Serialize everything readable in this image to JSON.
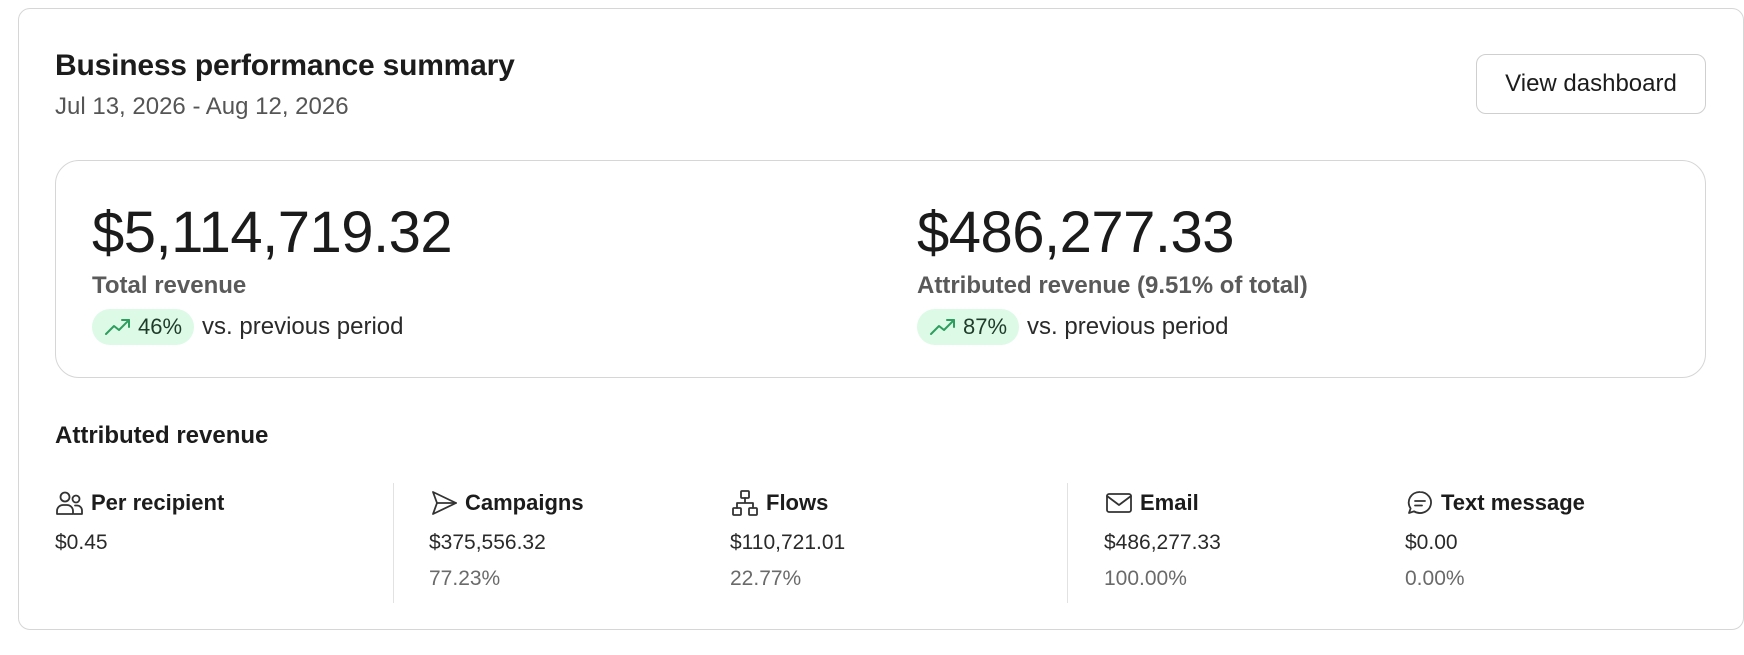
{
  "header": {
    "title": "Business performance summary",
    "date_range": "Jul 13, 2026 - Aug 12, 2026",
    "view_dashboard_label": "View dashboard"
  },
  "kpis": {
    "total": {
      "value": "$5,114,719.32",
      "label": "Total revenue",
      "change": "46%",
      "comparison": "vs. previous period",
      "trend_icon": "trending-up-icon"
    },
    "attributed": {
      "value": "$486,277.33",
      "label": "Attributed revenue (9.51% of total)",
      "change": "87%",
      "comparison": "vs. previous period",
      "trend_icon": "trending-up-icon"
    }
  },
  "attributed_section": {
    "title": "Attributed revenue",
    "metrics": [
      {
        "label": "Per recipient",
        "icon": "people-icon",
        "value": "$0.45",
        "pct": ""
      },
      {
        "label": "Campaigns",
        "icon": "send-icon",
        "value": "$375,556.32",
        "pct": "77.23%"
      },
      {
        "label": "Flows",
        "icon": "flow-icon",
        "value": "$110,721.01",
        "pct": "22.77%"
      },
      {
        "label": "Email",
        "icon": "envelope-icon",
        "value": "$486,277.33",
        "pct": "100.00%"
      },
      {
        "label": "Text message",
        "icon": "chat-icon",
        "value": "$0.00",
        "pct": "0.00%"
      }
    ]
  },
  "colors": {
    "pill_bg": "#dcfae6",
    "trend_green": "#2e9e5e",
    "border": "#d6d6d6"
  }
}
